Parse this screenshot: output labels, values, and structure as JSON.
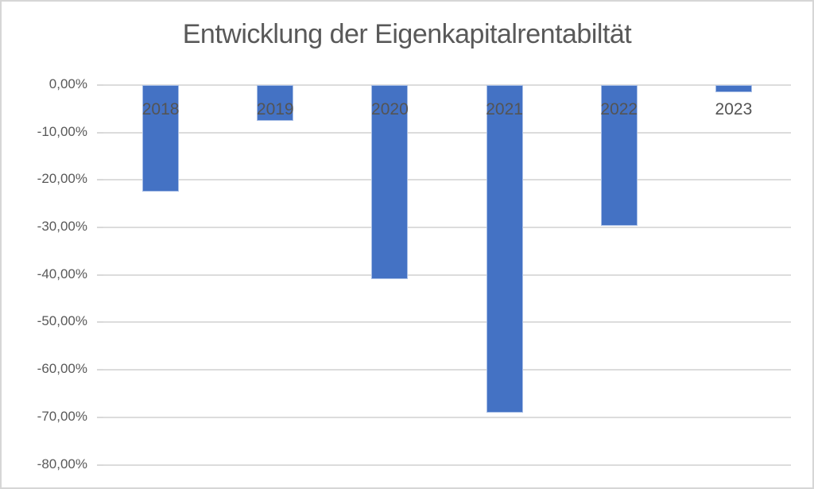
{
  "chart": {
    "colors": {
      "bar": "#4472C4",
      "bar_edge": "#a9bfe6",
      "gridline": "#dcdcdc",
      "text": "#595959",
      "frame_border": "#d6d6d6",
      "background": "#ffffff"
    }
  },
  "chart_data": {
    "type": "bar",
    "title": "Entwicklung der Eigenkapitalrentabiltät",
    "categories": [
      "2018",
      "2019",
      "2020",
      "2021",
      "2022",
      "2023"
    ],
    "values": [
      -22.5,
      -7.6,
      -40.8,
      -69.0,
      -29.7,
      -1.5
    ],
    "unit": "%",
    "xlabel": "",
    "ylabel": "",
    "ylim": [
      -80,
      0
    ],
    "y_tick_labels": [
      "0,00%",
      "-10,00%",
      "-20,00%",
      "-30,00%",
      "-40,00%",
      "-50,00%",
      "-60,00%",
      "-70,00%",
      "-80,00%"
    ],
    "y_tick_values": [
      0,
      -10,
      -20,
      -30,
      -40,
      -50,
      -60,
      -70,
      -80
    ],
    "grid": true,
    "legend": false,
    "value_label_format": "german_percent",
    "category_label_position": "below_zero_axis"
  }
}
